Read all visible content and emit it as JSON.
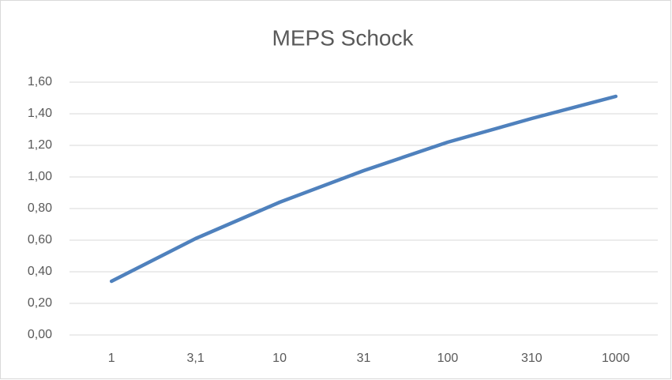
{
  "chart_data": {
    "type": "line",
    "title": "MEPS Schock",
    "categories": [
      "1",
      "3,1",
      "10",
      "31",
      "100",
      "310",
      "1000"
    ],
    "series": [
      {
        "name": "MEPS Schock",
        "color": "#4f81bd",
        "values": [
          0.34,
          0.61,
          0.84,
          1.04,
          1.22,
          1.37,
          1.51
        ]
      }
    ],
    "ylim": [
      0,
      1.6
    ],
    "yticks": [
      {
        "value": 0,
        "label": "0,00"
      },
      {
        "value": 0.2,
        "label": "0,20"
      },
      {
        "value": 0.4,
        "label": "0,40"
      },
      {
        "value": 0.6,
        "label": "0,60"
      },
      {
        "value": 0.8,
        "label": "0,80"
      },
      {
        "value": 1.0,
        "label": "1,00"
      },
      {
        "value": 1.2,
        "label": "1,20"
      },
      {
        "value": 1.4,
        "label": "1,40"
      },
      {
        "value": 1.6,
        "label": "1,60"
      }
    ],
    "grid": true
  }
}
